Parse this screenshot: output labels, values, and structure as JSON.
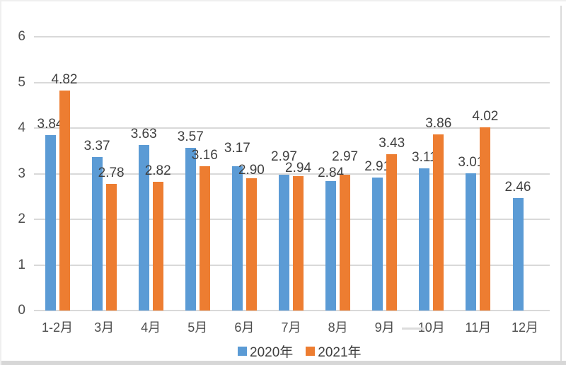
{
  "chart_data": {
    "type": "bar",
    "title": "",
    "categories": [
      "1-2月",
      "3月",
      "4月",
      "5月",
      "6月",
      "7月",
      "8月",
      "9月",
      "10月",
      "11月",
      "12月"
    ],
    "series": [
      {
        "name": "2020年",
        "color": "#5B9BD5",
        "values": [
          3.84,
          3.37,
          3.63,
          3.57,
          3.17,
          2.97,
          2.84,
          2.91,
          3.11,
          3.01,
          2.46
        ]
      },
      {
        "name": "2021年",
        "color": "#ED7D31",
        "values": [
          4.82,
          2.78,
          2.82,
          3.16,
          2.9,
          2.94,
          2.97,
          3.43,
          3.86,
          4.02,
          null
        ]
      }
    ],
    "xlabel": "",
    "ylabel": "",
    "ylim": [
      0,
      6
    ],
    "yticks": [
      0,
      1,
      2,
      3,
      4,
      5,
      6
    ],
    "grid": true,
    "data_labels": true,
    "label_decimals": 2,
    "legend_position": "bottom"
  },
  "legend": {
    "items": [
      {
        "label": "2020年",
        "color": "#5B9BD5"
      },
      {
        "label": "2021年",
        "color": "#ED7D31"
      }
    ]
  },
  "colors": {
    "grid": "#d9d9d9",
    "data_label_text": "#3f3f3f",
    "axis_text": "#4d4d4d",
    "series_2020": "#5B9BD5",
    "series_2021": "#ED7D31",
    "frame": "#efefef",
    "bottom_strip": "#d7d7d7"
  }
}
